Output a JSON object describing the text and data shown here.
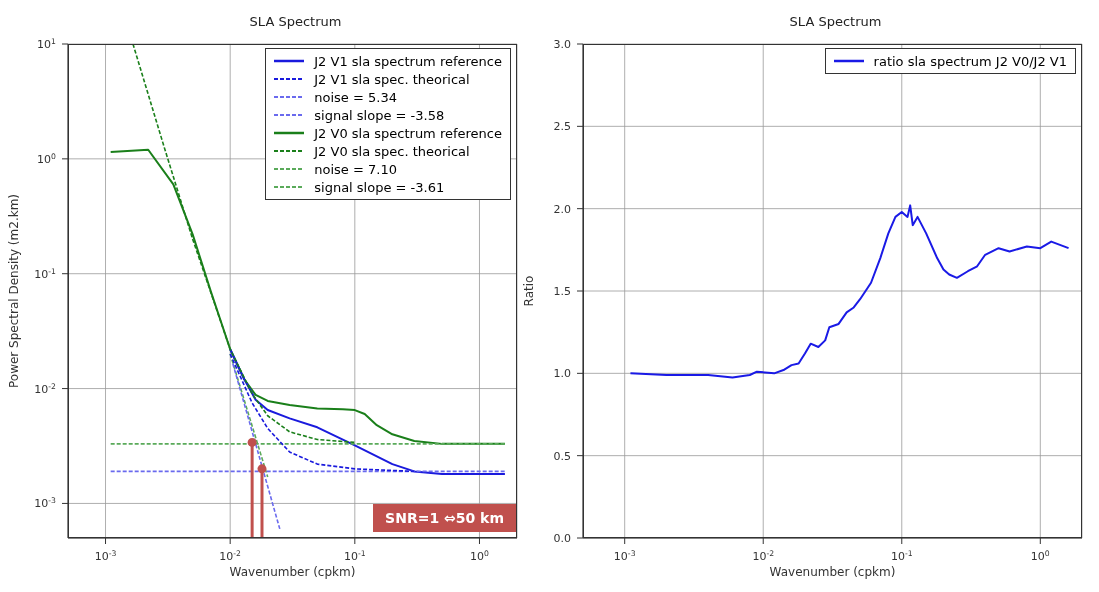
{
  "chart_data": [
    {
      "type": "line",
      "title": "SLA Spectrum",
      "xlabel": "Wavenumber (cpkm)",
      "ylabel": "Power Spectral Density (m2.km)",
      "log": "xy",
      "xlim": [
        0.0005,
        2
      ],
      "ylim": [
        0.0005,
        10
      ],
      "xticks": [
        {
          "value": 0.001,
          "label": "10$^{-3}$"
        },
        {
          "value": 0.01,
          "label": "10$^{-2}$"
        },
        {
          "value": 0.1,
          "label": "10$^{-1}$"
        },
        {
          "value": 1,
          "label": "10$^{0}$"
        }
      ],
      "yticks": [
        {
          "value": 0.001,
          "label": "10$^{-3}$"
        },
        {
          "value": 0.01,
          "label": "10$^{-2}$"
        },
        {
          "value": 0.1,
          "label": "10$^{-1}$"
        },
        {
          "value": 1,
          "label": "10$^{0}$"
        },
        {
          "value": 10,
          "label": "10$^{1}$"
        }
      ],
      "grid": true,
      "legend": "top right",
      "annotations": [
        "SNR=1 ⇔50 km"
      ],
      "series": [
        {
          "name": "J2 V1 sla spectrum reference",
          "color": "#1a1add",
          "line_style": "solid",
          "x": [
            0.01,
            0.013,
            0.016,
            0.02,
            0.03,
            0.05,
            0.1,
            0.2,
            0.3,
            0.5,
            1,
            1.6
          ],
          "values": [
            0.022,
            0.012,
            0.008,
            0.0065,
            0.0055,
            0.0046,
            0.0032,
            0.0022,
            0.0019,
            0.0018,
            0.0018,
            0.0018
          ]
        },
        {
          "name": "J2 V1 sla spec. theorical",
          "color": "#1a1add",
          "line_style": "dashed",
          "x": [
            0.01,
            0.015,
            0.02,
            0.03,
            0.05,
            0.1,
            0.3
          ],
          "values": [
            0.02,
            0.0075,
            0.0045,
            0.0028,
            0.0022,
            0.002,
            0.0019
          ]
        },
        {
          "name": "noise = 5.34",
          "color": "#6a6aee",
          "line_style": "dashed",
          "x": [
            0.0011,
            1.6
          ],
          "values": [
            0.0019,
            0.0019
          ]
        },
        {
          "name": "signal slope = -3.58",
          "color": "#6a6aee",
          "line_style": "dashed",
          "x": [
            0.0105,
            0.025
          ],
          "values": [
            0.0165,
            0.0006
          ]
        },
        {
          "name": "J2 V0 sla spectrum reference",
          "color": "#1a7f1a",
          "line_style": "solid",
          "x": [
            0.0011,
            0.0022,
            0.0035,
            0.005,
            0.007,
            0.01,
            0.013,
            0.016,
            0.02,
            0.03,
            0.05,
            0.08,
            0.1,
            0.12,
            0.15,
            0.2,
            0.3,
            0.5,
            1,
            1.6
          ],
          "values": [
            1.15,
            1.2,
            0.6,
            0.22,
            0.07,
            0.022,
            0.012,
            0.0088,
            0.0078,
            0.0072,
            0.0067,
            0.0066,
            0.0065,
            0.006,
            0.0048,
            0.004,
            0.0035,
            0.0033,
            0.0033,
            0.0033
          ]
        },
        {
          "name": "J2 V0 sla spec. theorical",
          "color": "#1a7f1a",
          "line_style": "dashed",
          "x": [
            0.00166,
            0.003,
            0.005,
            0.01,
            0.015,
            0.02,
            0.03,
            0.05,
            0.1
          ],
          "values": [
            10,
            1.2,
            0.2,
            0.022,
            0.009,
            0.0058,
            0.0042,
            0.0036,
            0.0034
          ]
        },
        {
          "name": "noise = 7.10",
          "color": "#5aaa5a",
          "line_style": "dashed",
          "x": [
            0.0011,
            1.6
          ],
          "values": [
            0.0033,
            0.0033
          ]
        },
        {
          "name": "signal slope = -3.61",
          "color": "#5aaa5a",
          "line_style": "dashed",
          "x": [
            0.01,
            0.02
          ],
          "values": [
            0.02,
            0.0017
          ]
        },
        {
          "type": "lollipop",
          "color": "#c0504d",
          "x": [
            0.015,
            0.018
          ],
          "values": [
            0.0034,
            0.002
          ]
        }
      ]
    },
    {
      "type": "line",
      "title": "SLA Spectrum",
      "xlabel": "Wavenumber (cpkm)",
      "ylabel": "Ratio",
      "log": "x",
      "xlim": [
        0.0005,
        2
      ],
      "ylim": [
        0,
        3
      ],
      "xticks": [
        {
          "value": 0.001,
          "label": "10$^{-3}$"
        },
        {
          "value": 0.01,
          "label": "10$^{-2}$"
        },
        {
          "value": 0.1,
          "label": "10$^{-1}$"
        },
        {
          "value": 1,
          "label": "10$^{0}$"
        }
      ],
      "yticks": [
        {
          "value": 0,
          "label": "0.0"
        },
        0.5,
        {
          "value": 1,
          "label": "1.0"
        },
        1.5,
        {
          "value": 2,
          "label": "2.0"
        },
        2.5,
        {
          "value": 3,
          "label": "3.0"
        }
      ],
      "grid": true,
      "legend": "top right",
      "series": [
        {
          "name": "ratio sla spectrum J2 V0/J2 V1",
          "color": "#1a1ae6",
          "line_style": "solid",
          "x": [
            0.0011,
            0.002,
            0.004,
            0.006,
            0.008,
            0.009,
            0.012,
            0.014,
            0.016,
            0.018,
            0.02,
            0.022,
            0.025,
            0.028,
            0.03,
            0.035,
            0.04,
            0.045,
            0.05,
            0.06,
            0.07,
            0.08,
            0.09,
            0.1,
            0.11,
            0.115,
            0.12,
            0.13,
            0.15,
            0.18,
            0.2,
            0.22,
            0.25,
            0.3,
            0.35,
            0.4,
            0.5,
            0.6,
            0.8,
            1,
            1.2,
            1.6
          ],
          "values": [
            1.0,
            0.99,
            0.99,
            0.975,
            0.99,
            1.01,
            1.0,
            1.02,
            1.05,
            1.06,
            1.12,
            1.18,
            1.16,
            1.2,
            1.28,
            1.3,
            1.37,
            1.4,
            1.45,
            1.55,
            1.7,
            1.85,
            1.95,
            1.98,
            1.95,
            2.02,
            1.9,
            1.95,
            1.85,
            1.7,
            1.63,
            1.6,
            1.58,
            1.62,
            1.65,
            1.72,
            1.76,
            1.74,
            1.77,
            1.76,
            1.8,
            1.76
          ]
        }
      ]
    }
  ]
}
